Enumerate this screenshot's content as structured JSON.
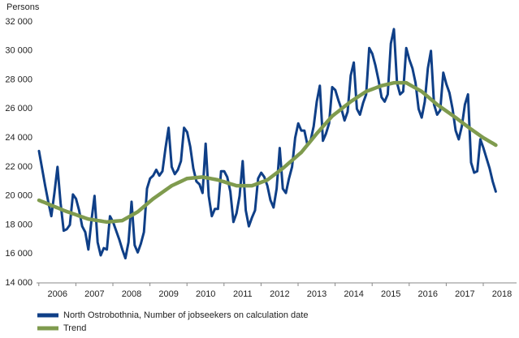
{
  "chart_data": {
    "type": "line",
    "y_axis_label": "Persons",
    "categories": [
      null,
      null,
      null,
      null,
      null,
      null,
      "2006",
      null,
      null,
      null,
      null,
      null,
      null,
      null,
      null,
      null,
      null,
      null,
      "2007",
      null,
      null,
      null,
      null,
      null,
      null,
      null,
      null,
      null,
      null,
      null,
      "2008",
      null,
      null,
      null,
      null,
      null,
      null,
      null,
      null,
      null,
      null,
      null,
      "2009",
      null,
      null,
      null,
      null,
      null,
      null,
      null,
      null,
      null,
      null,
      null,
      "2010",
      null,
      null,
      null,
      null,
      null,
      null,
      null,
      null,
      null,
      null,
      null,
      "2011",
      null,
      null,
      null,
      null,
      null,
      null,
      null,
      null,
      null,
      null,
      null,
      "2012",
      null,
      null,
      null,
      null,
      null,
      null,
      null,
      null,
      null,
      null,
      null,
      "2013",
      null,
      null,
      null,
      null,
      null,
      null,
      null,
      null,
      null,
      null,
      null,
      "2014",
      null,
      null,
      null,
      null,
      null,
      null,
      null,
      null,
      null,
      null,
      null,
      "2015",
      null,
      null,
      null,
      null,
      null,
      null,
      null,
      null,
      null,
      null,
      null,
      "2016",
      null,
      null,
      null,
      null,
      null,
      null,
      null,
      null,
      null,
      null,
      null,
      "2017",
      null,
      null,
      null,
      null,
      null,
      null,
      null,
      null,
      null,
      null,
      null,
      "2018"
    ],
    "series": [
      {
        "name": "North Ostrobothnia, Number of jobseekers on calculation date",
        "color": "#0f3f87",
        "values": [
          23100,
          21900,
          20700,
          19600,
          18600,
          20200,
          22000,
          19500,
          17600,
          17700,
          18000,
          20100,
          19800,
          19000,
          17900,
          17500,
          16300,
          18300,
          20000,
          16800,
          15900,
          16400,
          16300,
          18600,
          18200,
          17600,
          17000,
          16300,
          15700,
          16800,
          19600,
          16600,
          16100,
          16700,
          17500,
          20500,
          21200,
          21400,
          21800,
          21400,
          21700,
          23300,
          24700,
          22000,
          21500,
          21800,
          22400,
          24700,
          24400,
          23400,
          21900,
          21000,
          20800,
          20200,
          23600,
          20000,
          18600,
          19100,
          19100,
          21700,
          21700,
          21300,
          20300,
          18200,
          18800,
          20000,
          22400,
          19000,
          17900,
          18500,
          19000,
          21200,
          21600,
          21300,
          20700,
          19700,
          19200,
          20500,
          23300,
          20500,
          20200,
          21200,
          22000,
          24000,
          25000,
          24500,
          24500,
          23500,
          23800,
          24800,
          26500,
          27600,
          23800,
          24300,
          25000,
          27500,
          27300,
          26600,
          26000,
          25200,
          25800,
          28300,
          29200,
          26000,
          25600,
          26400,
          27000,
          30200,
          29800,
          29000,
          28000,
          26800,
          26500,
          27000,
          30500,
          31500,
          27800,
          27000,
          27200,
          30200,
          29400,
          28800,
          27800,
          26000,
          25400,
          26500,
          28800,
          30000,
          26300,
          25600,
          25900,
          28500,
          27700,
          27100,
          26000,
          24500,
          23900,
          24800,
          26300,
          27000,
          22300,
          21600,
          21700,
          23900,
          23300,
          22600,
          21900,
          21000,
          20300,
          null,
          null
        ]
      },
      {
        "name": "Trend",
        "color": "#7f9b4e",
        "values": [
          19700,
          19610,
          19530,
          19440,
          19350,
          19260,
          19180,
          19090,
          19000,
          18920,
          18850,
          18770,
          18700,
          18620,
          18550,
          18470,
          18400,
          18370,
          18330,
          18300,
          18270,
          18230,
          18200,
          18220,
          18240,
          18260,
          18280,
          18300,
          18420,
          18540,
          18660,
          18780,
          18900,
          19080,
          19260,
          19440,
          19620,
          19800,
          19950,
          20100,
          20250,
          20400,
          20550,
          20700,
          20800,
          20900,
          21000,
          21100,
          21200,
          21220,
          21240,
          21260,
          21280,
          21300,
          21260,
          21220,
          21180,
          21140,
          21100,
          21030,
          20970,
          20900,
          20830,
          20770,
          20700,
          20700,
          20700,
          20700,
          20700,
          20700,
          20780,
          20860,
          20940,
          21020,
          21100,
          21260,
          21420,
          21580,
          21740,
          21900,
          22080,
          22270,
          22450,
          22630,
          22820,
          23000,
          23260,
          23520,
          23780,
          24040,
          24300,
          24540,
          24780,
          25020,
          25260,
          25500,
          25670,
          25830,
          26000,
          26170,
          26330,
          26500,
          26640,
          26780,
          26920,
          27060,
          27200,
          27280,
          27360,
          27440,
          27520,
          27600,
          27650,
          27700,
          27750,
          27800,
          27800,
          27800,
          27800,
          27800,
          27680,
          27560,
          27440,
          27320,
          27200,
          27020,
          26840,
          26660,
          26480,
          26300,
          26150,
          26000,
          25850,
          25700,
          25550,
          25400,
          25240,
          25080,
          24920,
          24760,
          24600,
          24450,
          24300,
          24150,
          24000,
          23880,
          23750,
          23630,
          23500,
          null,
          null
        ]
      }
    ],
    "ylim": [
      14000,
      32000
    ],
    "yticks": [
      {
        "value": 14000,
        "label": "14 000"
      },
      {
        "value": 16000,
        "label": "16 000"
      },
      {
        "value": 18000,
        "label": "18 000"
      },
      {
        "value": 20000,
        "label": "20 000"
      },
      {
        "value": 22000,
        "label": "22 000"
      },
      {
        "value": 24000,
        "label": "24 000"
      },
      {
        "value": 26000,
        "label": "26 000"
      },
      {
        "value": 28000,
        "label": "28 000"
      },
      {
        "value": 30000,
        "label": "30 000"
      },
      {
        "value": 32000,
        "label": "32 000"
      }
    ],
    "grid": false
  }
}
